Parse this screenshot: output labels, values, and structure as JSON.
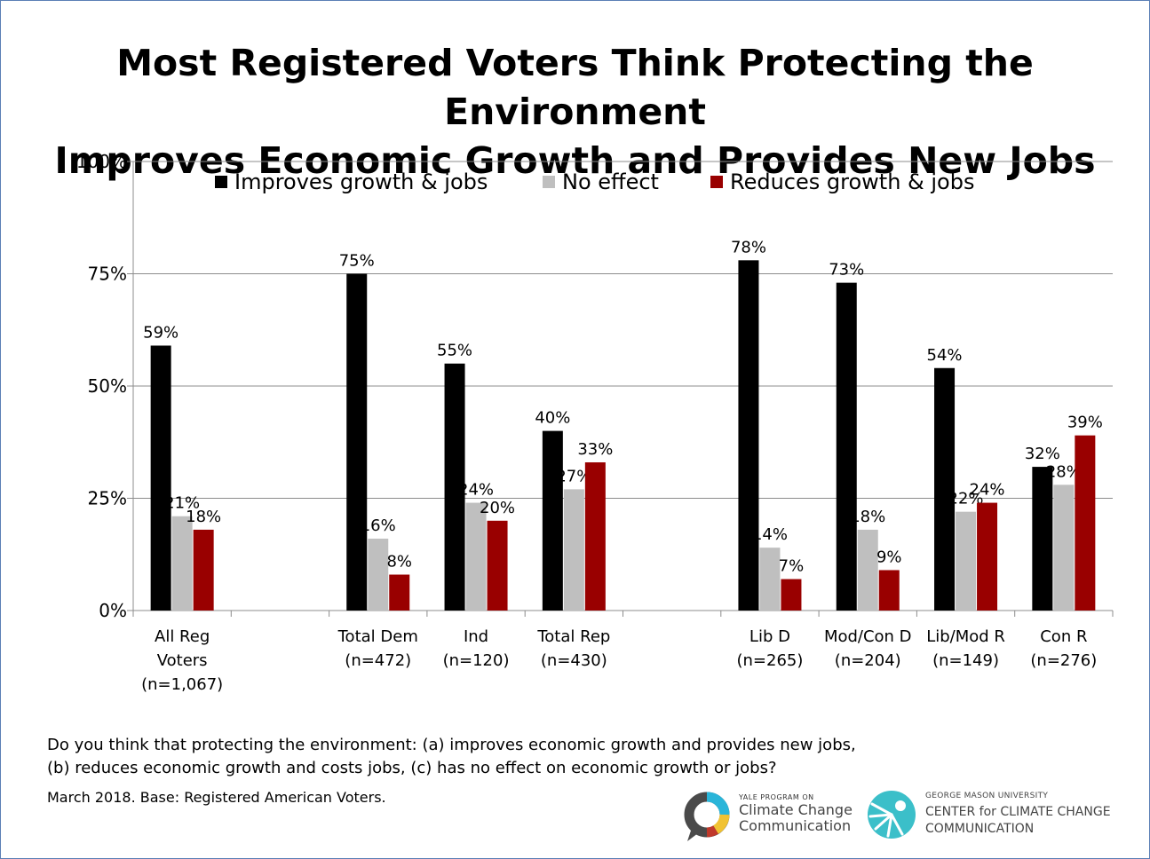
{
  "title_line1": "Most Registered Voters Think Protecting the Environment",
  "title_line2": "Improves Economic Growth and Provides New Jobs",
  "question_line1": "Do you think that protecting the environment: (a) improves economic growth and provides new jobs,",
  "question_line2": "(b) reduces economic growth and costs jobs, (c) has no effect on economic growth or jobs?",
  "note": "March 2018. Base: Registered American Voters.",
  "logo_yale": {
    "small": "YALE PROGRAM ON",
    "line1": "Climate Change",
    "line2": "Communication"
  },
  "logo_gmu": {
    "small": "GEORGE MASON UNIVERSITY",
    "line1": "CENTER for CLIMATE CHANGE",
    "line2": "COMMUNICATION"
  },
  "chart_data": {
    "type": "bar",
    "ylim": [
      0,
      100
    ],
    "yticks": [
      0,
      25,
      50,
      75,
      100
    ],
    "ytick_labels": [
      "0%",
      "25%",
      "50%",
      "75%",
      "100%"
    ],
    "grid": true,
    "legend_position": "top",
    "categories": [
      [
        "All Reg",
        "Voters",
        "(n=1,067)"
      ],
      [],
      [
        "Total Dem",
        "(n=472)"
      ],
      [
        "Ind",
        "(n=120)"
      ],
      [
        "Total Rep",
        "(n=430)"
      ],
      [],
      [
        "Lib D",
        "(n=265)"
      ],
      [
        "Mod/Con D",
        "(n=204)"
      ],
      [
        "Lib/Mod R",
        "(n=149)"
      ],
      [
        "Con R",
        "(n=276)"
      ]
    ],
    "series": [
      {
        "name": "Improves growth & jobs",
        "color": "#000000",
        "values": [
          59,
          null,
          75,
          55,
          40,
          null,
          78,
          73,
          54,
          32
        ]
      },
      {
        "name": "No effect",
        "color": "#bfbfbf",
        "values": [
          21,
          null,
          16,
          24,
          27,
          null,
          14,
          18,
          22,
          28
        ]
      },
      {
        "name": "Reduces growth & jobs",
        "color": "#990000",
        "values": [
          18,
          null,
          8,
          20,
          33,
          null,
          7,
          9,
          24,
          39
        ]
      }
    ]
  }
}
